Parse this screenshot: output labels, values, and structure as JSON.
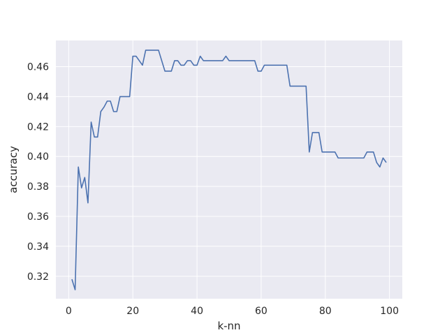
{
  "chart_data": {
    "type": "line",
    "title": "",
    "xlabel": "k-nn",
    "ylabel": "accuracy",
    "xlim": [
      -4,
      104
    ],
    "ylim": [
      0.305,
      0.4775
    ],
    "xticks": [
      0,
      20,
      40,
      60,
      80,
      100
    ],
    "yticks": [
      0.32,
      0.34,
      0.36,
      0.38,
      0.4,
      0.42,
      0.44,
      0.46
    ],
    "ytick_labels": [
      "0.32",
      "0.34",
      "0.36",
      "0.38",
      "0.40",
      "0.42",
      "0.44",
      "0.46"
    ],
    "xtick_labels": [
      "0",
      "20",
      "40",
      "60",
      "80",
      "100"
    ],
    "grid": true,
    "background": "#eaeaf2",
    "grid_color": "#ffffff",
    "line_color": "#4c72b0",
    "series": [
      {
        "x": [
          1,
          2,
          3,
          4,
          5,
          6,
          7,
          8,
          9,
          10,
          11,
          12,
          13,
          14,
          15,
          16,
          17,
          18,
          19,
          20,
          21,
          22,
          23,
          24,
          25,
          26,
          27,
          28,
          29,
          30,
          31,
          32,
          33,
          34,
          35,
          36,
          37,
          38,
          39,
          40,
          41,
          42,
          43,
          44,
          45,
          46,
          47,
          48,
          49,
          50,
          51,
          52,
          53,
          54,
          55,
          56,
          57,
          58,
          59,
          60,
          61,
          62,
          63,
          64,
          65,
          66,
          67,
          68,
          69,
          70,
          71,
          72,
          73,
          74,
          75,
          76,
          77,
          78,
          79,
          80,
          81,
          82,
          83,
          84,
          85,
          86,
          87,
          88,
          89,
          90,
          91,
          92,
          93,
          94,
          95,
          96,
          97,
          98,
          99
        ],
        "values": [
          0.318,
          0.311,
          0.393,
          0.379,
          0.386,
          0.369,
          0.423,
          0.413,
          0.413,
          0.43,
          0.433,
          0.437,
          0.437,
          0.43,
          0.43,
          0.44,
          0.44,
          0.44,
          0.44,
          0.467,
          0.467,
          0.464,
          0.461,
          0.471,
          0.471,
          0.471,
          0.471,
          0.471,
          0.464,
          0.457,
          0.457,
          0.457,
          0.464,
          0.464,
          0.461,
          0.461,
          0.464,
          0.464,
          0.461,
          0.461,
          0.467,
          0.464,
          0.464,
          0.464,
          0.464,
          0.464,
          0.464,
          0.464,
          0.467,
          0.464,
          0.464,
          0.464,
          0.464,
          0.464,
          0.464,
          0.464,
          0.464,
          0.464,
          0.457,
          0.457,
          0.461,
          0.461,
          0.461,
          0.461,
          0.461,
          0.461,
          0.461,
          0.461,
          0.447,
          0.447,
          0.447,
          0.447,
          0.447,
          0.447,
          0.403,
          0.416,
          0.416,
          0.416,
          0.403,
          0.403,
          0.403,
          0.403,
          0.403,
          0.399,
          0.399,
          0.399,
          0.399,
          0.399,
          0.399,
          0.399,
          0.399,
          0.399,
          0.403,
          0.403,
          0.403,
          0.396,
          0.393,
          0.399,
          0.396
        ]
      }
    ]
  }
}
